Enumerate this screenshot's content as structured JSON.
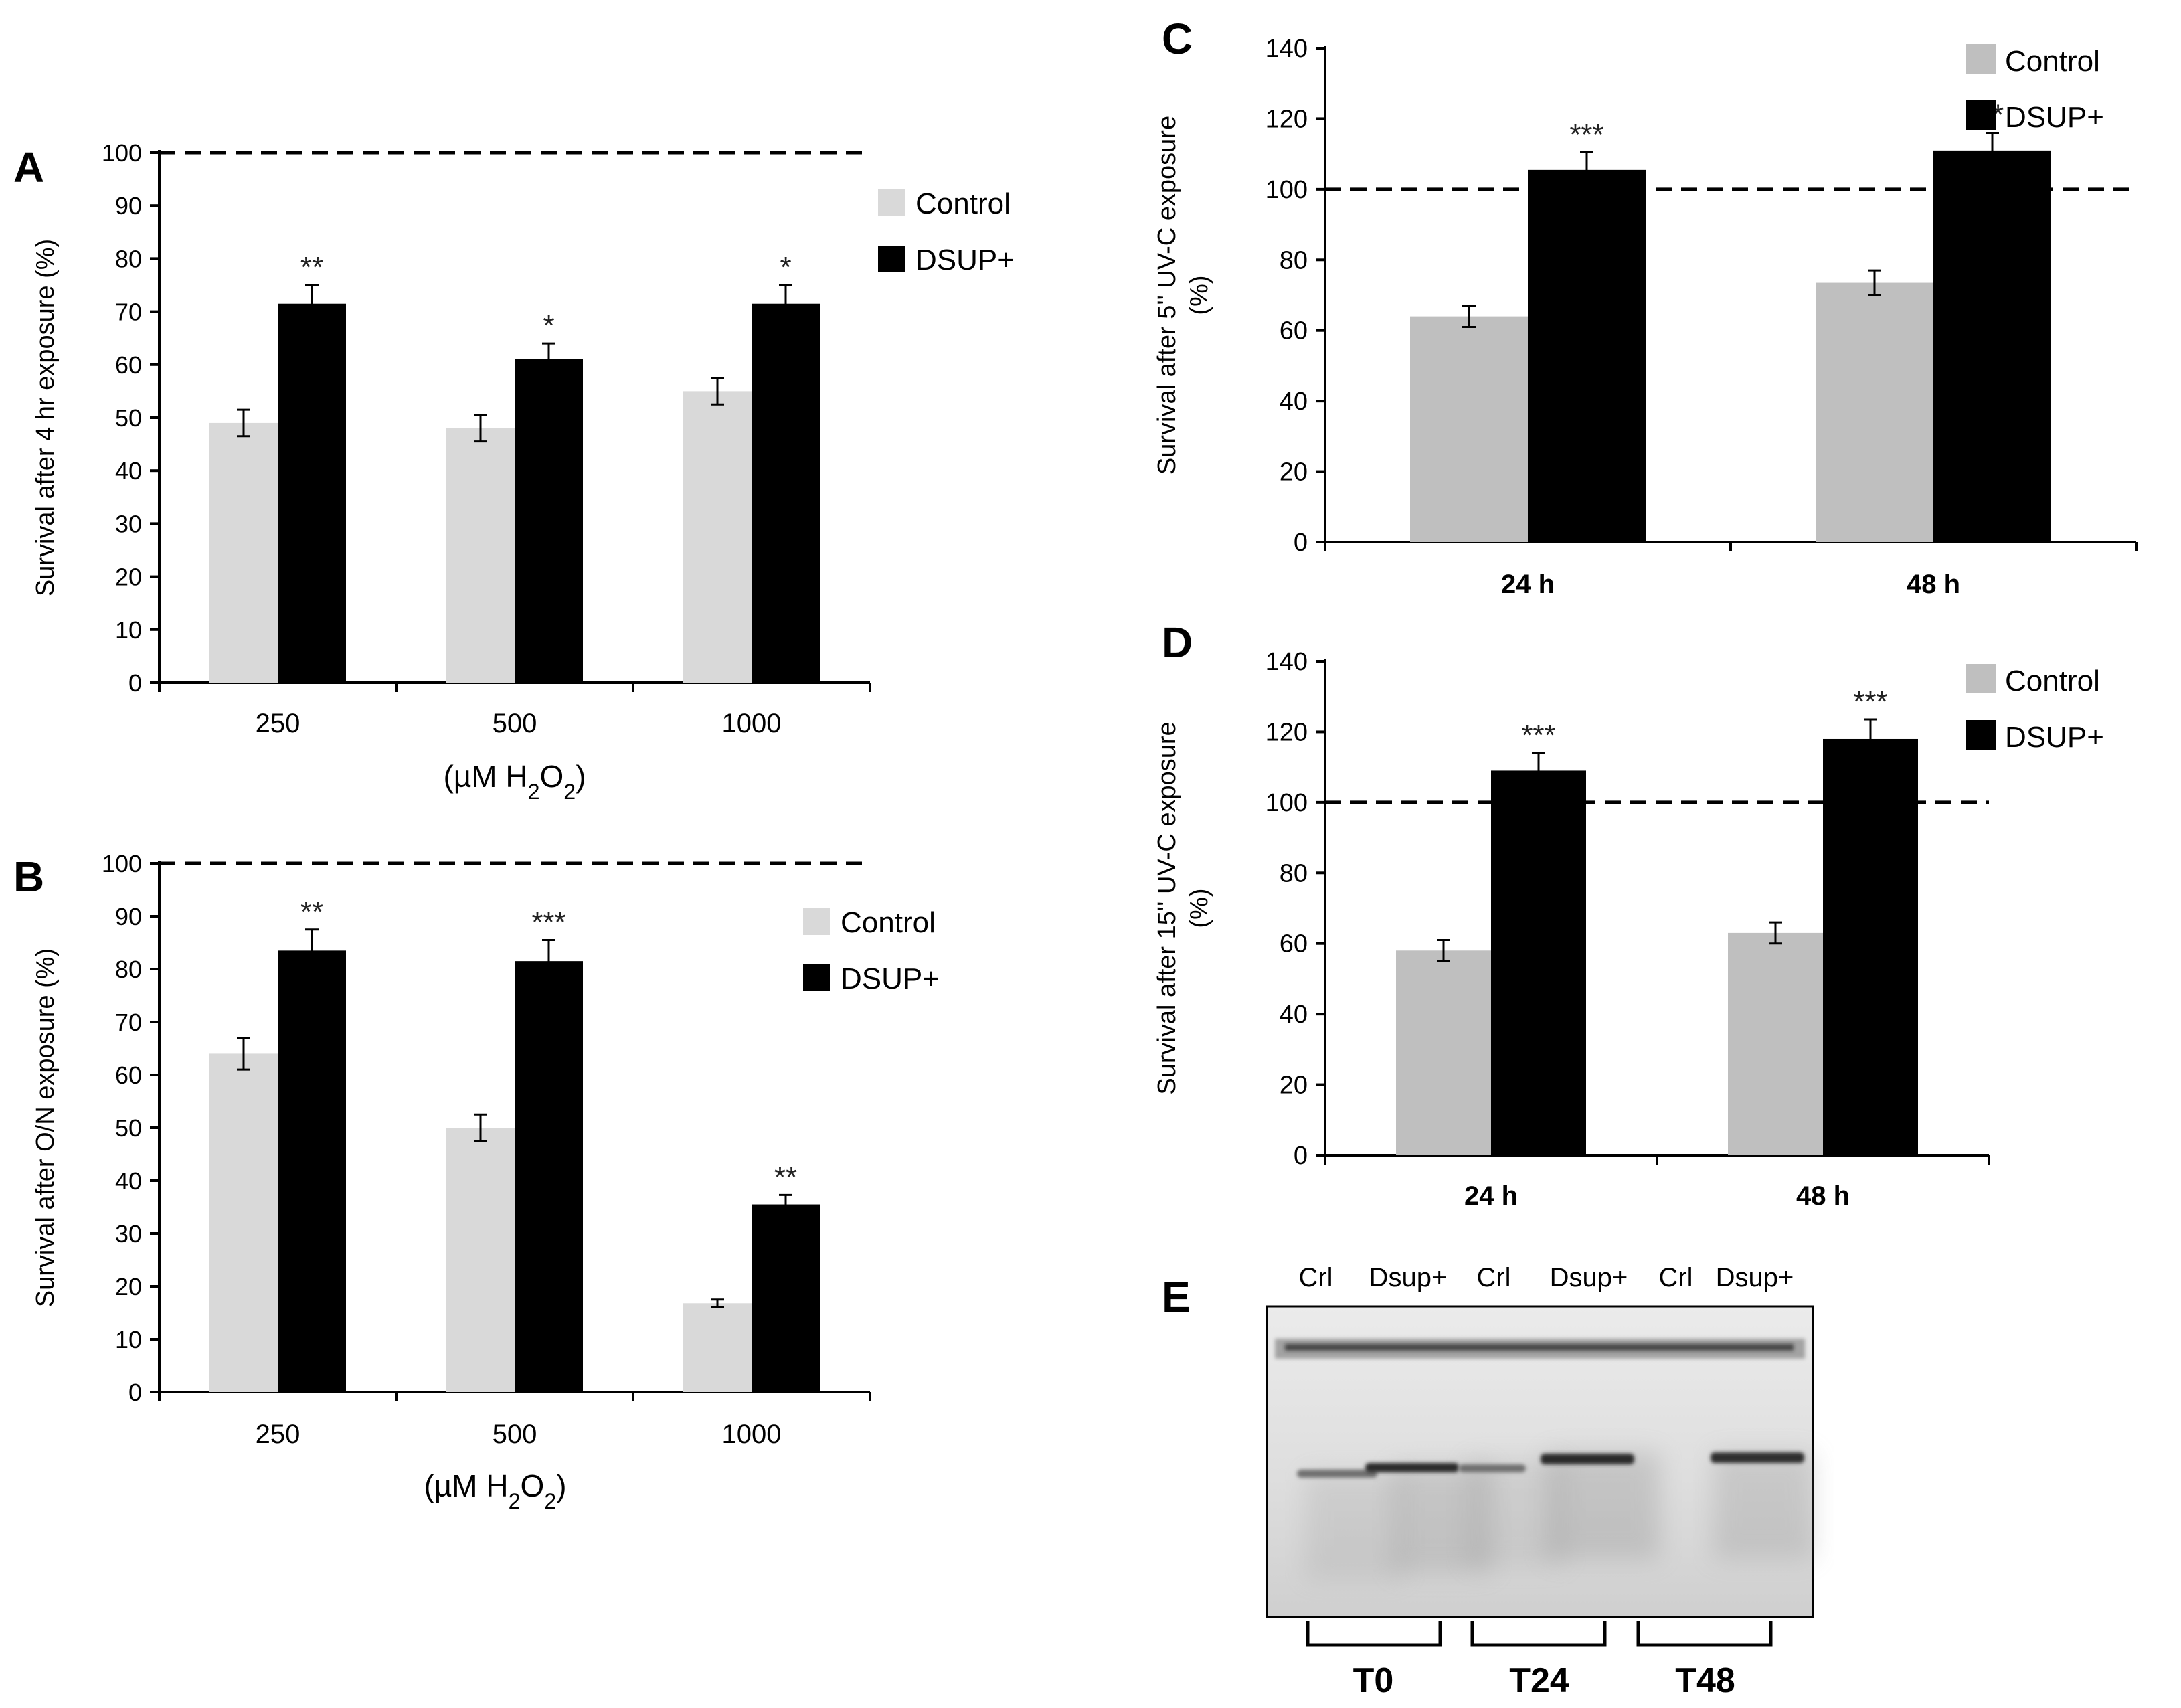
{
  "figure": {
    "panels": [
      {
        "label": "A",
        "chart": 0
      },
      {
        "label": "B",
        "chart": 1
      },
      {
        "label": "C",
        "chart": 2
      },
      {
        "label": "D",
        "chart": 3
      },
      {
        "label": "E"
      }
    ],
    "colors": {
      "control": "#d9d9d9",
      "control_uv": "#bfbfbf",
      "dsup": "#000000",
      "axis": "#000000"
    },
    "gel": {
      "lane_labels": [
        "Crl",
        "Dsup+",
        "Crl",
        "Dsup+",
        "Crl",
        "Dsup+"
      ],
      "group_labels": [
        "T0",
        "T24",
        "T48"
      ]
    }
  },
  "chart_data": [
    {
      "panel": "A",
      "type": "bar",
      "categories": [
        "250",
        "500",
        "1000"
      ],
      "xlabel": "(µM H2O2)",
      "ylabel": "Survival after 4 hr exposure (%)",
      "ylim": [
        0,
        100
      ],
      "yticks": [
        0,
        10,
        20,
        30,
        40,
        50,
        60,
        70,
        80,
        90,
        100
      ],
      "reference_line": 100,
      "legend_position": "top-right",
      "series": [
        {
          "name": "Control",
          "values": [
            49,
            48,
            55
          ],
          "errors": [
            2.5,
            2.5,
            2.5
          ]
        },
        {
          "name": "DSUP+",
          "values": [
            71.5,
            61,
            71.5
          ],
          "errors": [
            3.5,
            3,
            3.5
          ]
        }
      ],
      "significance": [
        "**",
        "*",
        "*"
      ]
    },
    {
      "panel": "B",
      "type": "bar",
      "categories": [
        "250",
        "500",
        "1000"
      ],
      "xlabel": "(µM H2O2)",
      "ylabel": "Survival after O/N exposure  (%)",
      "ylim": [
        0,
        100
      ],
      "yticks": [
        0,
        10,
        20,
        30,
        40,
        50,
        60,
        70,
        80,
        90,
        100
      ],
      "reference_line": 100,
      "legend_position": "top-right",
      "series": [
        {
          "name": "Control",
          "values": [
            64,
            50,
            16.8
          ],
          "errors": [
            3,
            2.5,
            0.7
          ]
        },
        {
          "name": "DSUP+",
          "values": [
            83.5,
            81.5,
            35.5
          ],
          "errors": [
            4,
            4,
            1.8
          ]
        }
      ],
      "significance": [
        "**",
        "***",
        "**"
      ]
    },
    {
      "panel": "C",
      "type": "bar",
      "categories": [
        "24 h",
        "48 h"
      ],
      "xlabel": "",
      "ylabel": "Survival after 5'' UV-C exposure (%)",
      "ylim": [
        0,
        140
      ],
      "yticks": [
        0,
        20,
        40,
        60,
        80,
        100,
        120,
        140
      ],
      "reference_line": 100,
      "legend_position": "top-right",
      "series": [
        {
          "name": "Control",
          "values": [
            64,
            73.5
          ],
          "errors": [
            3,
            3.5
          ]
        },
        {
          "name": "DSUP+",
          "values": [
            105.5,
            111
          ],
          "errors": [
            5,
            5
          ]
        }
      ],
      "significance": [
        "***",
        "**"
      ]
    },
    {
      "panel": "D",
      "type": "bar",
      "categories": [
        "24 h",
        "48 h"
      ],
      "xlabel": "",
      "ylabel": "Survival after 15'' UV-C exposure (%)",
      "ylim": [
        0,
        140
      ],
      "yticks": [
        0,
        20,
        40,
        60,
        80,
        100,
        120,
        140
      ],
      "reference_line": 100,
      "legend_position": "top-right",
      "series": [
        {
          "name": "Control",
          "values": [
            58,
            63
          ],
          "errors": [
            3,
            3
          ]
        },
        {
          "name": "DSUP+",
          "values": [
            109,
            118
          ],
          "errors": [
            5,
            5.5
          ]
        }
      ],
      "significance": [
        "***",
        "***"
      ]
    }
  ]
}
